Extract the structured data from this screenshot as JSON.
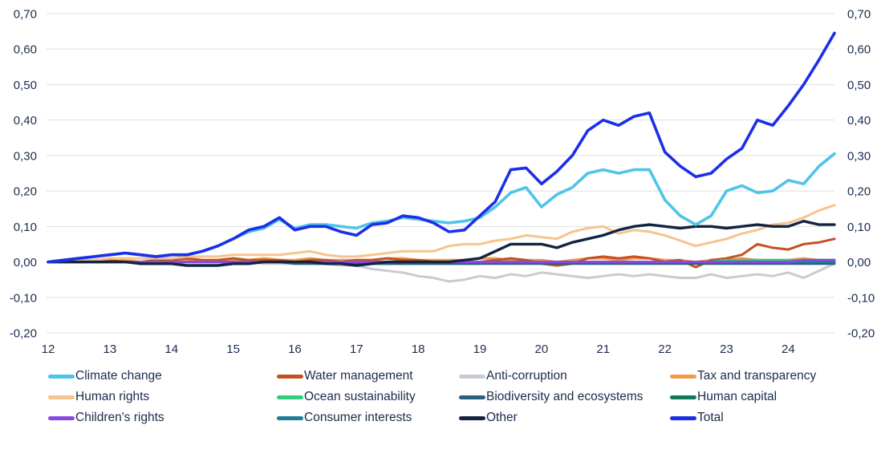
{
  "chart_data": {
    "type": "line",
    "title": "",
    "xlabel": "",
    "ylabel": "",
    "xlim": [
      12,
      24.75
    ],
    "ylim": [
      -0.2,
      0.7
    ],
    "grid": true,
    "legend_position": "bottom",
    "decimal_separator": ",",
    "yticks": [
      {
        "v": 0.7,
        "label": "0,70"
      },
      {
        "v": 0.6,
        "label": "0,60"
      },
      {
        "v": 0.5,
        "label": "0,50"
      },
      {
        "v": 0.4,
        "label": "0,40"
      },
      {
        "v": 0.3,
        "label": "0,30"
      },
      {
        "v": 0.2,
        "label": "0,20"
      },
      {
        "v": 0.1,
        "label": "0,10"
      },
      {
        "v": 0.0,
        "label": "0,00"
      },
      {
        "v": -0.1,
        "label": "-0,10"
      },
      {
        "v": -0.2,
        "label": "-0,20"
      }
    ],
    "xticks": [
      {
        "v": 12,
        "label": "12"
      },
      {
        "v": 13,
        "label": "13"
      },
      {
        "v": 14,
        "label": "14"
      },
      {
        "v": 15,
        "label": "15"
      },
      {
        "v": 16,
        "label": "16"
      },
      {
        "v": 17,
        "label": "17"
      },
      {
        "v": 18,
        "label": "18"
      },
      {
        "v": 19,
        "label": "19"
      },
      {
        "v": 20,
        "label": "20"
      },
      {
        "v": 21,
        "label": "21"
      },
      {
        "v": 22,
        "label": "22"
      },
      {
        "v": 23,
        "label": "23"
      },
      {
        "v": 24,
        "label": "24"
      }
    ],
    "x": [
      12,
      12.25,
      12.5,
      12.75,
      13,
      13.25,
      13.5,
      13.75,
      14,
      14.25,
      14.5,
      14.75,
      15,
      15.25,
      15.5,
      15.75,
      16,
      16.25,
      16.5,
      16.75,
      17,
      17.25,
      17.5,
      17.75,
      18,
      18.25,
      18.5,
      18.75,
      19,
      19.25,
      19.5,
      19.75,
      20,
      20.25,
      20.5,
      20.75,
      21,
      21.25,
      21.5,
      21.75,
      22,
      22.25,
      22.5,
      22.75,
      23,
      23.25,
      23.5,
      23.75,
      24,
      24.25,
      24.5,
      24.75
    ],
    "series": [
      {
        "name": "Anti-corruption",
        "color": "#C8CCD2",
        "values": [
          0,
          0,
          0,
          0,
          0,
          0,
          0,
          0,
          0,
          0,
          0,
          0,
          0,
          0,
          -0.005,
          -0.005,
          -0.005,
          -0.005,
          -0.005,
          -0.01,
          -0.01,
          -0.02,
          -0.025,
          -0.03,
          -0.04,
          -0.045,
          -0.055,
          -0.05,
          -0.04,
          -0.045,
          -0.035,
          -0.04,
          -0.03,
          -0.035,
          -0.04,
          -0.045,
          -0.04,
          -0.035,
          -0.04,
          -0.035,
          -0.04,
          -0.045,
          -0.045,
          -0.035,
          -0.045,
          -0.04,
          -0.035,
          -0.04,
          -0.03,
          -0.045,
          -0.025,
          -0.005
        ]
      },
      {
        "name": "Tax and transparency",
        "color": "#EF9B49",
        "values": [
          0,
          0,
          0,
          0,
          0,
          0.005,
          0,
          0,
          0.005,
          0.005,
          0,
          0.005,
          0.005,
          0.005,
          0.01,
          0.005,
          0.005,
          0.01,
          0.005,
          0.005,
          0.005,
          0.005,
          0.01,
          0.01,
          0.005,
          0.005,
          0.005,
          0.005,
          0.01,
          0.01,
          0.005,
          0.005,
          0.005,
          0,
          0.005,
          0.01,
          0.01,
          0.005,
          0.01,
          0.01,
          0.005,
          0.005,
          0,
          0.005,
          0.005,
          0.01,
          0.005,
          0.005,
          0.005,
          0.01,
          0.005,
          0.005
        ]
      },
      {
        "name": "Water management",
        "color": "#C4511F",
        "values": [
          0,
          0,
          0.005,
          0,
          0.005,
          0,
          0,
          0.005,
          0.005,
          0.01,
          0.005,
          0.005,
          0.01,
          0.005,
          0.005,
          0.005,
          0,
          0.005,
          0.005,
          0,
          0.005,
          0.005,
          0.01,
          0.005,
          0.005,
          0,
          -0.005,
          0,
          0,
          0.005,
          0.01,
          0.005,
          -0.005,
          -0.01,
          -0.005,
          0.01,
          0.015,
          0.01,
          0.015,
          0.01,
          0,
          0.005,
          -0.015,
          0.005,
          0.01,
          0.02,
          0.05,
          0.04,
          0.035,
          0.05,
          0.055,
          0.065
        ]
      },
      {
        "name": "Human rights",
        "color": "#F6C48E",
        "values": [
          0,
          0,
          0.005,
          0.005,
          0.01,
          0.01,
          0.01,
          0.01,
          0.01,
          0.015,
          0.015,
          0.015,
          0.02,
          0.02,
          0.02,
          0.02,
          0.025,
          0.03,
          0.02,
          0.015,
          0.015,
          0.02,
          0.025,
          0.03,
          0.03,
          0.03,
          0.045,
          0.05,
          0.05,
          0.06,
          0.065,
          0.075,
          0.07,
          0.065,
          0.085,
          0.095,
          0.1,
          0.08,
          0.09,
          0.085,
          0.075,
          0.06,
          0.045,
          0.055,
          0.065,
          0.08,
          0.09,
          0.105,
          0.11,
          0.125,
          0.145,
          0.16
        ]
      },
      {
        "name": "Ocean sustainability",
        "color": "#2FCE7C",
        "values": [
          0,
          0,
          0,
          0,
          0,
          0,
          0,
          0,
          0,
          0,
          0,
          0,
          0,
          0,
          0,
          0,
          0,
          0,
          0,
          0,
          0,
          0,
          0,
          0,
          0,
          0,
          0,
          0,
          0,
          0,
          0,
          0,
          0,
          0,
          0,
          0,
          0,
          0,
          0,
          0,
          0,
          0,
          0,
          0,
          0.005,
          0.005,
          0.005,
          0.005,
          0.005,
          0.005,
          0.005,
          0.005
        ]
      },
      {
        "name": "Human capital",
        "color": "#13795B",
        "values": [
          0,
          0,
          0,
          0,
          0,
          0,
          0,
          0,
          0,
          0,
          0,
          0,
          0,
          0,
          0,
          0,
          0,
          0,
          0,
          0,
          -0.005,
          -0.005,
          -0.005,
          -0.005,
          -0.005,
          -0.005,
          -0.005,
          -0.005,
          -0.005,
          0,
          0,
          0,
          0,
          0,
          0,
          0,
          0,
          0,
          0,
          0,
          0,
          0,
          0,
          0,
          0,
          0,
          0,
          0,
          0,
          0,
          0,
          0
        ]
      },
      {
        "name": "Biodiversity and ecosystems",
        "color": "#2A607F",
        "values": [
          0,
          0,
          0,
          0,
          0,
          0,
          0,
          0,
          0,
          0,
          0,
          0,
          0,
          0,
          0,
          0,
          -0.005,
          -0.005,
          -0.005,
          -0.005,
          -0.005,
          -0.005,
          -0.005,
          -0.005,
          -0.005,
          -0.005,
          -0.005,
          -0.005,
          -0.005,
          -0.005,
          -0.005,
          -0.005,
          -0.005,
          -0.005,
          -0.005,
          -0.005,
          -0.005,
          -0.005,
          -0.005,
          -0.005,
          -0.005,
          -0.005,
          -0.005,
          -0.005,
          -0.005,
          -0.005,
          -0.005,
          -0.005,
          -0.005,
          -0.005,
          -0.005,
          -0.005
        ]
      },
      {
        "name": "Consumer interests",
        "color": "#1F7D97",
        "values": [
          0,
          0,
          0,
          0,
          0,
          0,
          0,
          0,
          0,
          0,
          0,
          0,
          0,
          0,
          0,
          0,
          0,
          0,
          0,
          0,
          0,
          0,
          0,
          0,
          0,
          0,
          0,
          0,
          0,
          0,
          0,
          0,
          0,
          0,
          0,
          0,
          0,
          0,
          0,
          0,
          0,
          0,
          0,
          0,
          0,
          0,
          0,
          0,
          0,
          0,
          0,
          0
        ]
      },
      {
        "name": "Children's rights",
        "color": "#8A48E2",
        "values": [
          0,
          0,
          0,
          0,
          0,
          0,
          0,
          0,
          0,
          0,
          0,
          0,
          0,
          0,
          0,
          0,
          0,
          0,
          0,
          0,
          0,
          0,
          0,
          0,
          0,
          0,
          0,
          0,
          0,
          0,
          0,
          0,
          0,
          0,
          0,
          0,
          0,
          0,
          0,
          0,
          0,
          0,
          0,
          0,
          0,
          0,
          0,
          0,
          0,
          0.005,
          0.005,
          0.005
        ]
      },
      {
        "name": "Other",
        "color": "#132441",
        "values": [
          0,
          0,
          0,
          0,
          0,
          0,
          -0.005,
          -0.005,
          -0.005,
          -0.01,
          -0.01,
          -0.01,
          -0.005,
          -0.005,
          0,
          0,
          0,
          0,
          -0.005,
          -0.005,
          -0.01,
          -0.005,
          0,
          0,
          0,
          0,
          0,
          0.005,
          0.01,
          0.03,
          0.05,
          0.05,
          0.05,
          0.04,
          0.055,
          0.065,
          0.075,
          0.09,
          0.1,
          0.105,
          0.1,
          0.095,
          0.1,
          0.1,
          0.095,
          0.1,
          0.105,
          0.1,
          0.1,
          0.115,
          0.105,
          0.105
        ]
      },
      {
        "name": "Climate change",
        "color": "#4FC4E8",
        "values": [
          0,
          0.005,
          0.01,
          0.015,
          0.02,
          0.025,
          0.02,
          0.015,
          0.02,
          0.02,
          0.03,
          0.045,
          0.065,
          0.085,
          0.095,
          0.12,
          0.095,
          0.105,
          0.105,
          0.1,
          0.095,
          0.11,
          0.115,
          0.125,
          0.12,
          0.115,
          0.11,
          0.115,
          0.125,
          0.155,
          0.195,
          0.21,
          0.155,
          0.19,
          0.21,
          0.25,
          0.26,
          0.25,
          0.26,
          0.26,
          0.175,
          0.13,
          0.105,
          0.13,
          0.2,
          0.215,
          0.195,
          0.2,
          0.23,
          0.22,
          0.27,
          0.305
        ]
      },
      {
        "name": "Total",
        "color": "#1B2FE8",
        "values": [
          0,
          0.005,
          0.01,
          0.015,
          0.02,
          0.025,
          0.02,
          0.015,
          0.02,
          0.02,
          0.03,
          0.045,
          0.065,
          0.09,
          0.1,
          0.125,
          0.09,
          0.1,
          0.1,
          0.085,
          0.075,
          0.105,
          0.11,
          0.13,
          0.125,
          0.11,
          0.085,
          0.09,
          0.13,
          0.17,
          0.26,
          0.265,
          0.22,
          0.255,
          0.3,
          0.37,
          0.4,
          0.385,
          0.41,
          0.42,
          0.31,
          0.27,
          0.24,
          0.25,
          0.29,
          0.32,
          0.4,
          0.385,
          0.44,
          0.5,
          0.57,
          0.645
        ]
      }
    ]
  },
  "legend": {
    "items": [
      {
        "label": "Climate change"
      },
      {
        "label": "Water management"
      },
      {
        "label": "Anti-corruption"
      },
      {
        "label": "Tax and transparency"
      },
      {
        "label": "Human rights"
      },
      {
        "label": "Ocean sustainability"
      },
      {
        "label": "Biodiversity and ecosystems"
      },
      {
        "label": "Human capital"
      },
      {
        "label": "Children's rights"
      },
      {
        "label": "Consumer interests"
      },
      {
        "label": "Other"
      },
      {
        "label": "Total"
      }
    ]
  },
  "colors": {
    "text": "#1C2B4D",
    "gridline": "#DBDEE1",
    "background": "#FFFFFF"
  }
}
